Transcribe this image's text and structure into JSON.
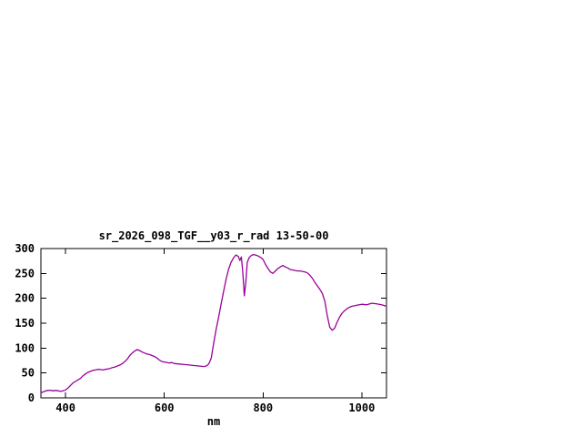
{
  "window": {
    "background": "#ffffff"
  },
  "chart_data": {
    "type": "line",
    "title": "sr_2026_098_TGF__y03_r_rad 13-50-00",
    "xlabel": "nm",
    "ylabel": "",
    "xlim": [
      350,
      1050
    ],
    "ylim": [
      0,
      300
    ],
    "xticks": [
      400,
      600,
      800,
      1000
    ],
    "yticks": [
      0,
      50,
      100,
      150,
      200,
      250,
      300
    ],
    "grid": false,
    "legend": "none",
    "line_color": "#990099",
    "border_color": "#000000",
    "series": [
      {
        "name": "sr_2026_098_TGF__y03_r_rad",
        "x": [
          350,
          355,
          360,
          365,
          370,
          375,
          380,
          385,
          390,
          395,
          400,
          405,
          410,
          415,
          420,
          425,
          430,
          435,
          440,
          445,
          450,
          455,
          460,
          465,
          470,
          475,
          480,
          485,
          490,
          495,
          500,
          505,
          510,
          515,
          520,
          525,
          530,
          535,
          540,
          545,
          550,
          555,
          560,
          565,
          570,
          575,
          580,
          585,
          590,
          595,
          600,
          610,
          615,
          620,
          630,
          640,
          650,
          660,
          670,
          680,
          685,
          690,
          695,
          700,
          705,
          710,
          715,
          720,
          725,
          730,
          735,
          740,
          745,
          750,
          753,
          756,
          759,
          762,
          765,
          768,
          772,
          776,
          780,
          785,
          790,
          795,
          800,
          805,
          810,
          815,
          820,
          825,
          830,
          835,
          840,
          845,
          850,
          855,
          860,
          865,
          870,
          875,
          880,
          885,
          890,
          895,
          900,
          905,
          910,
          915,
          920,
          925,
          930,
          935,
          940,
          945,
          950,
          955,
          960,
          965,
          970,
          975,
          980,
          985,
          990,
          1000,
          1010,
          1020,
          1030,
          1040,
          1050
        ],
        "y": [
          10,
          12,
          14,
          15,
          15,
          14,
          15,
          14,
          13,
          14,
          16,
          20,
          25,
          30,
          33,
          36,
          39,
          44,
          48,
          51,
          53,
          55,
          56,
          57,
          57,
          56,
          57,
          58,
          59,
          61,
          62,
          64,
          66,
          69,
          73,
          78,
          85,
          90,
          94,
          97,
          95,
          92,
          90,
          88,
          87,
          85,
          83,
          80,
          76,
          73,
          72,
          70,
          71,
          69,
          68,
          67,
          66,
          65,
          64,
          63,
          64,
          68,
          80,
          110,
          138,
          162,
          188,
          214,
          238,
          258,
          272,
          281,
          287,
          284,
          276,
          283,
          252,
          205,
          232,
          272,
          282,
          286,
          288,
          287,
          285,
          282,
          278,
          268,
          260,
          253,
          250,
          255,
          260,
          263,
          266,
          263,
          261,
          258,
          257,
          256,
          255,
          255,
          254,
          253,
          251,
          246,
          240,
          232,
          225,
          218,
          210,
          195,
          165,
          142,
          136,
          140,
          152,
          162,
          170,
          175,
          179,
          182,
          184,
          185,
          186,
          188,
          187,
          190,
          189,
          187,
          184
        ]
      }
    ]
  }
}
